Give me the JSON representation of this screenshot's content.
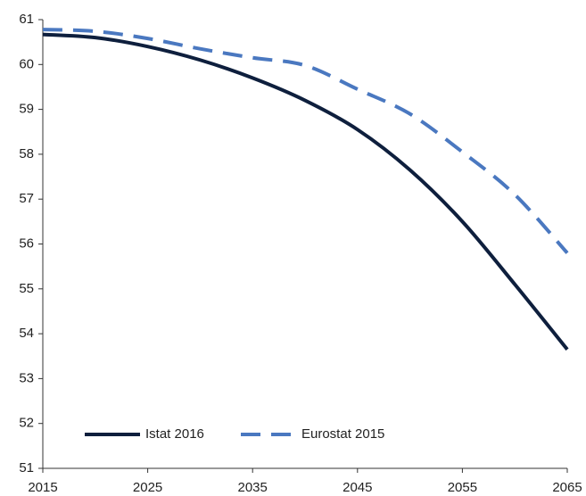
{
  "chart_data": {
    "type": "line",
    "x": [
      2015,
      2020,
      2025,
      2030,
      2035,
      2040,
      2045,
      2050,
      2055,
      2060,
      2065
    ],
    "series": [
      {
        "name": "Istat 2016",
        "color": "#0e1f3d",
        "dash": false,
        "values": [
          60.67,
          60.6,
          60.4,
          60.1,
          59.7,
          59.2,
          58.55,
          57.65,
          56.5,
          55.1,
          53.65
        ]
      },
      {
        "name": "Eurostat 2015",
        "color": "#4a78c0",
        "dash": true,
        "values": [
          60.78,
          60.74,
          60.58,
          60.35,
          60.15,
          59.98,
          59.45,
          58.9,
          58.05,
          57.1,
          55.8
        ]
      }
    ],
    "xlim": [
      2015,
      2065
    ],
    "xticks": [
      2015,
      2025,
      2035,
      2045,
      2055,
      2065
    ],
    "ylim": [
      51,
      61
    ],
    "yticks": [
      51,
      52,
      53,
      54,
      55,
      56,
      57,
      58,
      59,
      60,
      61
    ],
    "grid": false
  }
}
